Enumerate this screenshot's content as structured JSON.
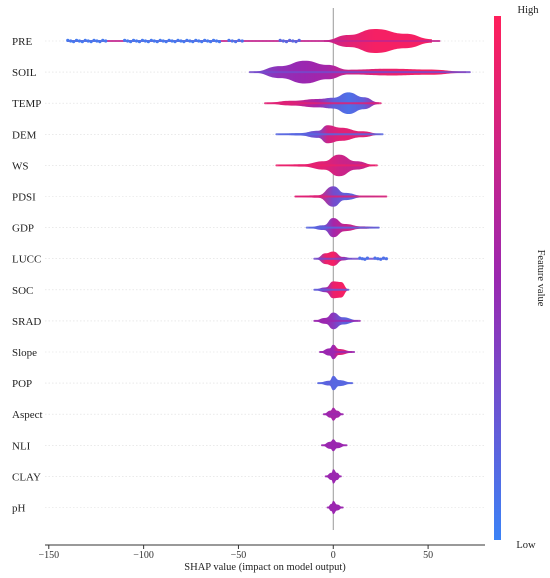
{
  "chart_data": {
    "type": "violin",
    "xlabel": "SHAP value (impact on model output)",
    "xlim": [
      -152,
      80
    ],
    "xticks": [
      -150,
      -100,
      -50,
      0,
      50
    ],
    "colorbar": {
      "label": "Feature value",
      "high": "High",
      "low": "Low"
    },
    "colors": {
      "low": "#3b82f6",
      "mid": "#9b27b0",
      "high": "#ff1f5b"
    },
    "features": [
      {
        "name": "PRE",
        "min": -140,
        "max": 56,
        "violin": [
          [
            -5,
            0.05,
            0.7
          ],
          [
            8,
            0.5,
            0.85
          ],
          [
            22,
            1.0,
            0.95
          ],
          [
            38,
            0.6,
            0.95
          ],
          [
            52,
            0.15,
            0.95
          ]
        ],
        "dots": [
          [
            -140,
            -120,
            0.05
          ],
          [
            -110,
            -60,
            0.05
          ],
          [
            -55,
            -48,
            0.08
          ],
          [
            -28,
            -18,
            0.15
          ]
        ]
      },
      {
        "name": "SOIL",
        "min": -44,
        "max": 72,
        "violin": [
          [
            -42,
            0.05,
            0.3
          ],
          [
            -28,
            0.5,
            0.45
          ],
          [
            -15,
            0.95,
            0.5
          ],
          [
            -3,
            0.6,
            0.55
          ],
          [
            8,
            0.2,
            0.75
          ],
          [
            30,
            0.28,
            0.9
          ],
          [
            50,
            0.22,
            0.95
          ],
          [
            70,
            0.05,
            0.95
          ]
        ],
        "dots": []
      },
      {
        "name": "TEMP",
        "min": -36,
        "max": 25,
        "violin": [
          [
            -35,
            0.05,
            0.85
          ],
          [
            -22,
            0.2,
            0.8
          ],
          [
            -8,
            0.35,
            0.55
          ],
          [
            0,
            0.45,
            0.2
          ],
          [
            8,
            0.9,
            0.1
          ],
          [
            16,
            0.5,
            0.2
          ],
          [
            24,
            0.08,
            0.6
          ]
        ],
        "dots": []
      },
      {
        "name": "DEM",
        "min": -30,
        "max": 26,
        "violin": [
          [
            -29,
            0.04,
            0.15
          ],
          [
            -18,
            0.1,
            0.15
          ],
          [
            -8,
            0.3,
            0.3
          ],
          [
            -3,
            0.75,
            0.75
          ],
          [
            4,
            0.55,
            0.85
          ],
          [
            15,
            0.25,
            0.85
          ],
          [
            25,
            0.04,
            0.85
          ]
        ],
        "dots": []
      },
      {
        "name": "WS",
        "min": -30,
        "max": 23,
        "violin": [
          [
            -29,
            0.04,
            0.9
          ],
          [
            -16,
            0.1,
            0.85
          ],
          [
            -5,
            0.35,
            0.85
          ],
          [
            3,
            0.9,
            0.75
          ],
          [
            12,
            0.35,
            0.7
          ],
          [
            22,
            0.05,
            0.75
          ]
        ],
        "dots": []
      },
      {
        "name": "PDSI",
        "min": -20,
        "max": 28,
        "violin": [
          [
            -20,
            0.04,
            0.85
          ],
          [
            -8,
            0.1,
            0.8
          ],
          [
            0,
            0.85,
            0.3
          ],
          [
            6,
            0.3,
            0.2
          ],
          [
            16,
            0.06,
            0.12
          ],
          [
            28,
            0.03,
            0.12
          ]
        ],
        "dots": []
      },
      {
        "name": "GDP",
        "min": -14,
        "max": 24,
        "violin": [
          [
            -13,
            0.04,
            0.15
          ],
          [
            -5,
            0.2,
            0.25
          ],
          [
            0,
            0.8,
            0.55
          ],
          [
            6,
            0.3,
            0.7
          ],
          [
            15,
            0.1,
            0.8
          ],
          [
            24,
            0.04,
            0.8
          ]
        ],
        "dots": []
      },
      {
        "name": "LUCC",
        "min": -10,
        "max": 28,
        "violin": [
          [
            -9,
            0.05,
            0.3
          ],
          [
            -4,
            0.45,
            0.9
          ],
          [
            0,
            0.6,
            0.95
          ],
          [
            5,
            0.15,
            0.6
          ],
          [
            10,
            0.04,
            0.2
          ]
        ],
        "dots": [
          [
            14,
            18,
            0.1
          ],
          [
            22,
            28,
            0.1
          ]
        ]
      },
      {
        "name": "SOC",
        "min": -10,
        "max": 8,
        "violin": [
          [
            -10,
            0.04,
            0.2
          ],
          [
            -4,
            0.2,
            0.45
          ],
          [
            0,
            0.7,
            0.9
          ],
          [
            4,
            0.65,
            0.95
          ],
          [
            8,
            0.05,
            0.95
          ]
        ],
        "dots": []
      },
      {
        "name": "SRAD",
        "min": -10,
        "max": 14,
        "violin": [
          [
            -10,
            0.04,
            0.5
          ],
          [
            -4,
            0.25,
            0.5
          ],
          [
            0,
            0.7,
            0.4
          ],
          [
            5,
            0.3,
            0.2
          ],
          [
            13,
            0.05,
            0.1
          ]
        ],
        "dots": []
      },
      {
        "name": "Slope",
        "min": -7,
        "max": 11,
        "violin": [
          [
            -7,
            0.04,
            0.5
          ],
          [
            -2,
            0.3,
            0.5
          ],
          [
            0,
            0.6,
            0.5
          ],
          [
            3,
            0.25,
            0.8
          ],
          [
            10,
            0.06,
            0.85
          ]
        ],
        "dots": []
      },
      {
        "name": "POP",
        "min": -8,
        "max": 10,
        "violin": [
          [
            -8,
            0.04,
            0.15
          ],
          [
            -2,
            0.2,
            0.2
          ],
          [
            0,
            0.6,
            0.15
          ],
          [
            3,
            0.25,
            0.15
          ],
          [
            10,
            0.05,
            0.15
          ]
        ],
        "dots": []
      },
      {
        "name": "Aspect",
        "min": -5,
        "max": 5,
        "violin": [
          [
            -5,
            0.04,
            0.5
          ],
          [
            -1.5,
            0.3,
            0.55
          ],
          [
            0,
            0.55,
            0.55
          ],
          [
            2,
            0.3,
            0.55
          ],
          [
            5,
            0.04,
            0.55
          ]
        ],
        "dots": []
      },
      {
        "name": "NLI",
        "min": -6,
        "max": 7,
        "violin": [
          [
            -6,
            0.03,
            0.5
          ],
          [
            -1.5,
            0.3,
            0.5
          ],
          [
            0,
            0.5,
            0.5
          ],
          [
            2,
            0.25,
            0.5
          ],
          [
            7,
            0.03,
            0.5
          ]
        ],
        "dots": []
      },
      {
        "name": "CLAY",
        "min": -4,
        "max": 4,
        "violin": [
          [
            -4,
            0.04,
            0.5
          ],
          [
            -1,
            0.3,
            0.5
          ],
          [
            0,
            0.6,
            0.5
          ],
          [
            2,
            0.3,
            0.5
          ],
          [
            4,
            0.04,
            0.5
          ]
        ],
        "dots": []
      },
      {
        "name": "pH",
        "min": -3,
        "max": 5,
        "violin": [
          [
            -3,
            0.04,
            0.5
          ],
          [
            -1,
            0.3,
            0.5
          ],
          [
            0,
            0.55,
            0.5
          ],
          [
            2,
            0.25,
            0.5
          ],
          [
            5,
            0.04,
            0.5
          ]
        ],
        "dots": []
      }
    ]
  }
}
